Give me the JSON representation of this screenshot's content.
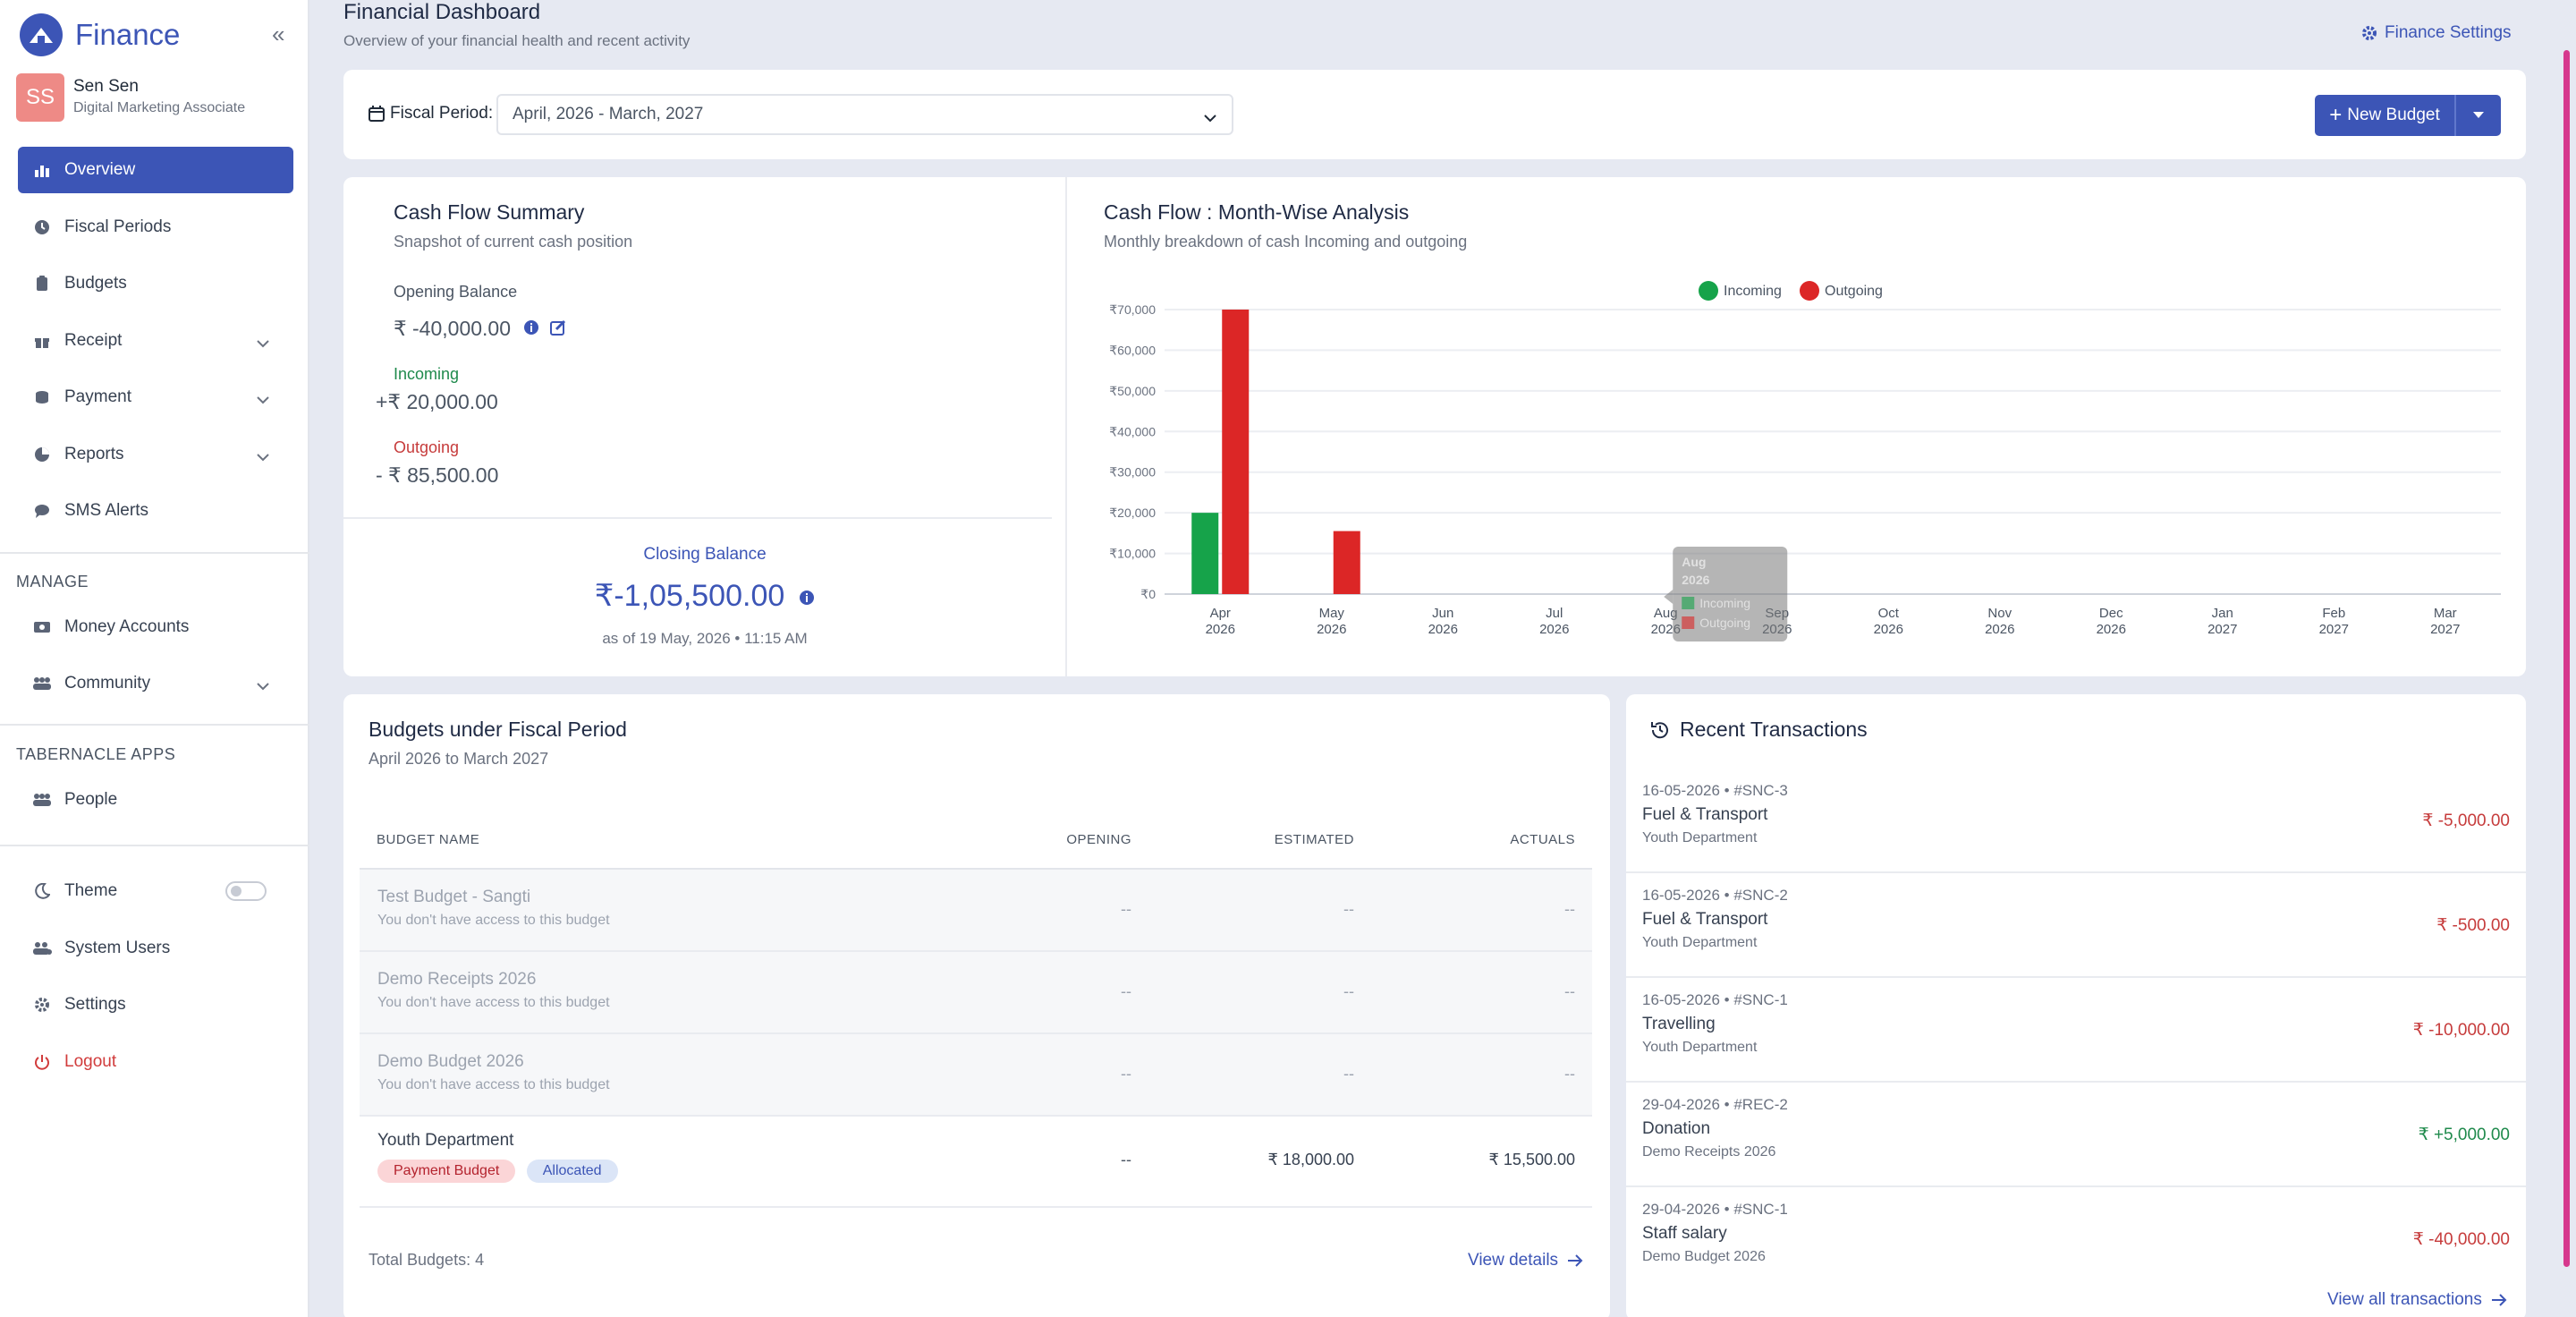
{
  "sidebar": {
    "brand": "Finance",
    "user": {
      "initials": "SS",
      "name": "Sen Sen",
      "role": "Digital Marketing Associate"
    },
    "nav": [
      {
        "label": "Overview",
        "icon": "bar-chart-icon",
        "active": true
      },
      {
        "label": "Fiscal Periods",
        "icon": "clock-icon"
      },
      {
        "label": "Budgets",
        "icon": "clipboard-icon"
      },
      {
        "label": "Receipt",
        "icon": "gift-icon",
        "expandable": true
      },
      {
        "label": "Payment",
        "icon": "coins-icon",
        "expandable": true
      },
      {
        "label": "Reports",
        "icon": "pie-chart-icon",
        "expandable": true
      },
      {
        "label": "SMS Alerts",
        "icon": "chat-icon"
      }
    ],
    "manage_label": "MANAGE",
    "manage": [
      {
        "label": "Money Accounts",
        "icon": "money-icon"
      },
      {
        "label": "Community",
        "icon": "people-icon",
        "expandable": true
      }
    ],
    "apps_label": "TABERNACLE APPS",
    "apps": [
      {
        "label": "People",
        "icon": "people-icon"
      }
    ],
    "theme_label": "Theme",
    "system_users_label": "System Users",
    "settings_label": "Settings",
    "logout_label": "Logout"
  },
  "header": {
    "title": "Financial Dashboard",
    "subtitle": "Overview of your financial health and recent activity",
    "settings_link": "Finance Settings"
  },
  "fiscal": {
    "label": "Fiscal Period:",
    "value": "April, 2026 - March, 2027",
    "new_budget": "New Budget"
  },
  "cashflow": {
    "title": "Cash Flow Summary",
    "subtitle": "Snapshot of current cash position",
    "opening_label": "Opening Balance",
    "opening_value": "₹ -40,000.00",
    "incoming_label": "Incoming",
    "incoming_value": "+₹ 20,000.00",
    "outgoing_label": "Outgoing",
    "outgoing_value": "- ₹ 85,500.00",
    "closing_label": "Closing Balance",
    "closing_value": "₹-1,05,500.00",
    "closing_date": "as of 19 May, 2026 • 11:15 AM"
  },
  "chart_data": {
    "type": "bar",
    "title": "Cash Flow : Month-Wise Analysis",
    "subtitle": "Monthly breakdown of cash Incoming and outgoing",
    "categories": [
      "Apr 2026",
      "May 2026",
      "Jun 2026",
      "Jul 2026",
      "Aug 2026",
      "Sep 2026",
      "Oct 2026",
      "Nov 2026",
      "Dec 2026",
      "Jan 2027",
      "Feb 2027",
      "Mar 2027"
    ],
    "series": [
      {
        "name": "Incoming",
        "color": "#16a34a",
        "values": [
          20000,
          0,
          0,
          0,
          0,
          0,
          0,
          0,
          0,
          0,
          0,
          0
        ]
      },
      {
        "name": "Outgoing",
        "color": "#dc2626",
        "values": [
          70000,
          15500,
          0,
          0,
          0,
          0,
          0,
          0,
          0,
          0,
          0,
          0
        ]
      }
    ],
    "ylim": [
      0,
      70000
    ],
    "yticks": [
      "₹0",
      "₹10,000",
      "₹20,000",
      "₹30,000",
      "₹40,000",
      "₹50,000",
      "₹60,000",
      "₹70,000"
    ],
    "legend": "top-center",
    "grid": true,
    "tooltip": {
      "title": "Aug 2026",
      "items": [
        "Incoming",
        "Outgoing"
      ]
    }
  },
  "budgets": {
    "title": "Budgets under Fiscal Period",
    "subtitle": "April 2026 to March 2027",
    "columns": [
      "BUDGET NAME",
      "OPENING",
      "ESTIMATED",
      "ACTUALS"
    ],
    "rows": [
      {
        "name": "Test Budget - Sangti",
        "note": "You don't have access to this budget",
        "opening": "--",
        "estimated": "--",
        "actuals": "--"
      },
      {
        "name": "Demo Receipts 2026",
        "note": "You don't have access to this budget",
        "opening": "--",
        "estimated": "--",
        "actuals": "--"
      },
      {
        "name": "Demo Budget 2026",
        "note": "You don't have access to this budget",
        "opening": "--",
        "estimated": "--",
        "actuals": "--"
      },
      {
        "name": "Youth Department",
        "badge1": "Payment Budget",
        "badge2": "Allocated",
        "opening": "--",
        "estimated": "₹ 18,000.00",
        "actuals": "₹ 15,500.00"
      }
    ],
    "total": "Total Budgets: 4",
    "view_details": "View details"
  },
  "transactions": {
    "title": "Recent Transactions",
    "items": [
      {
        "meta": "16-05-2026 • #SNC-3",
        "title": "Fuel & Transport",
        "sub": "Youth Department",
        "amount": "₹ -5,000.00",
        "type": "out"
      },
      {
        "meta": "16-05-2026 • #SNC-2",
        "title": "Fuel & Transport",
        "sub": "Youth Department",
        "amount": "₹ -500.00",
        "type": "out"
      },
      {
        "meta": "16-05-2026 • #SNC-1",
        "title": "Travelling",
        "sub": "Youth Department",
        "amount": "₹ -10,000.00",
        "type": "out"
      },
      {
        "meta": "29-04-2026 • #REC-2",
        "title": "Donation",
        "sub": "Demo Receipts 2026",
        "amount": "₹ +5,000.00",
        "type": "in"
      },
      {
        "meta": "29-04-2026 • #SNC-1",
        "title": "Staff salary",
        "sub": "Demo Budget 2026",
        "amount": "₹ -40,000.00",
        "type": "out"
      }
    ],
    "view_all": "View all transactions"
  }
}
